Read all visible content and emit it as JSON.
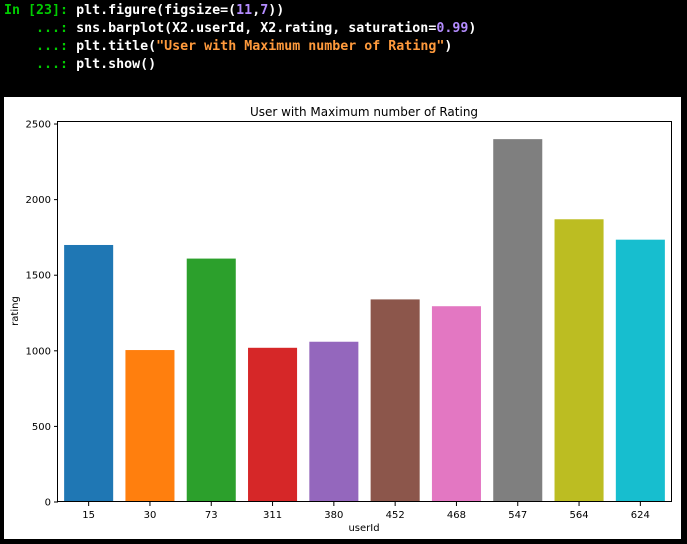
{
  "console": {
    "cell_prompt": "In [23]:",
    "cont_prompt": "...:",
    "line1": {
      "a": "plt.figure(figsize=(",
      "n1": "11",
      "c": ",",
      "n2": "7",
      "e": "))"
    },
    "line2": {
      "a": "sns.barplot(X2.userId, X2.rating, saturation=",
      "n": "0.99",
      "e": ")"
    },
    "line3": {
      "a": "plt.title(",
      "s": "\"User with Maximum number of Rating\"",
      "e": ")"
    },
    "line4": {
      "a": "plt.show()"
    }
  },
  "colors": {
    "prompt": "#00cc00",
    "number": "#b48cff",
    "string": "#ff9a3c"
  },
  "chart_data": {
    "type": "bar",
    "title": "User with Maximum number of Rating",
    "xlabel": "userId",
    "ylabel": "rating",
    "categories": [
      "15",
      "30",
      "73",
      "311",
      "380",
      "452",
      "468",
      "547",
      "564",
      "624"
    ],
    "values": [
      1700,
      1005,
      1610,
      1020,
      1060,
      1340,
      1295,
      2400,
      1870,
      1735
    ],
    "colors": [
      "#1f77b4",
      "#ff7f0e",
      "#2ca02c",
      "#d62728",
      "#9467bd",
      "#8c564b",
      "#e377c2",
      "#7f7f7f",
      "#bcbd22",
      "#17becf"
    ],
    "ylim": [
      0,
      2520
    ],
    "yticks": [
      0,
      500,
      1000,
      1500,
      2000,
      2500
    ],
    "grid": false
  }
}
